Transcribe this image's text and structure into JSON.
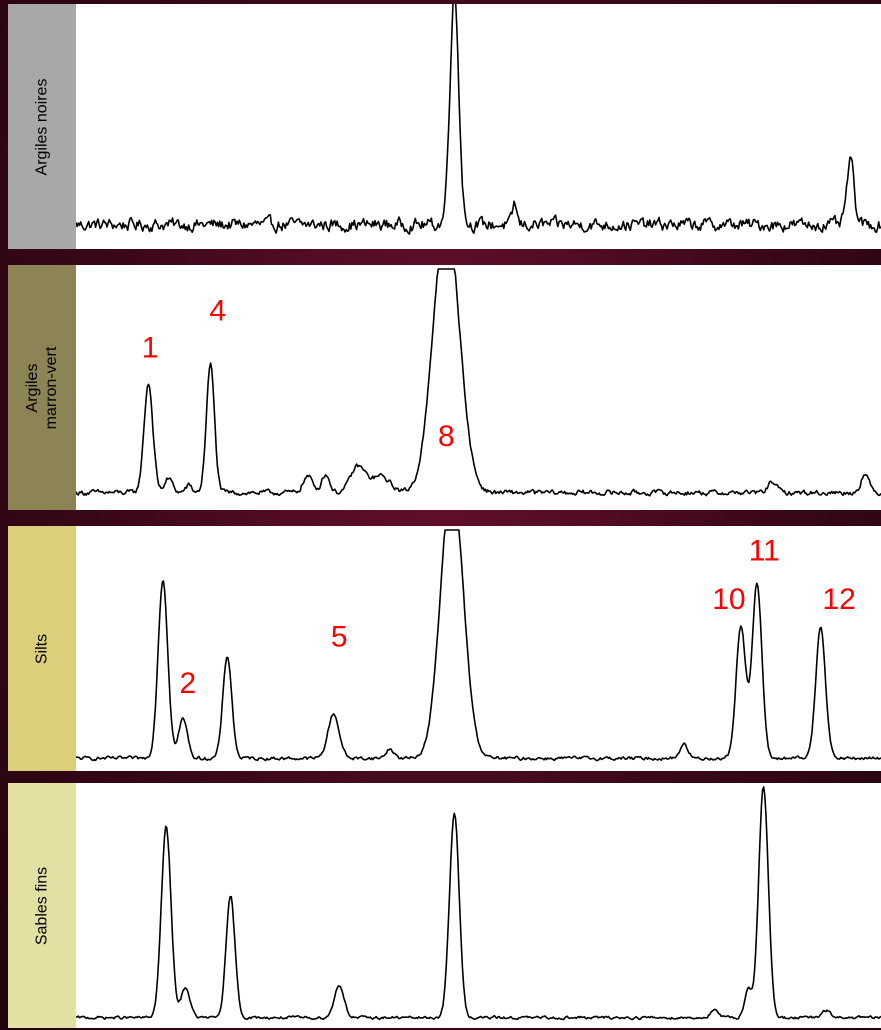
{
  "chart_data": {
    "type": "line",
    "x_unit": "relative position along diffractogram (0–100)",
    "panels": [
      {
        "label": "Argiles noires",
        "label_lines": [
          "Argiles noires"
        ],
        "label_bg": "#a8a8a8",
        "noise": 2.2,
        "baseline": 7,
        "peaks": [
          {
            "x": 47.0,
            "h": 100,
            "w": 0.55
          },
          {
            "x": 54.5,
            "h": 9,
            "w": 0.25
          },
          {
            "x": 96.2,
            "h": 27,
            "w": 0.45
          }
        ],
        "annotations": []
      },
      {
        "label": "Argiles marron-vert",
        "label_lines": [
          "Argiles",
          "marron-vert"
        ],
        "label_bg": "#8c8455",
        "noise": 0.9,
        "baseline": 4,
        "peaks": [
          {
            "x": 9.0,
            "h": 47,
            "w": 0.55
          },
          {
            "x": 11.5,
            "h": 6,
            "w": 0.5
          },
          {
            "x": 14.0,
            "h": 3,
            "w": 0.4
          },
          {
            "x": 16.7,
            "h": 55,
            "w": 0.5
          },
          {
            "x": 28.8,
            "h": 7,
            "w": 0.6
          },
          {
            "x": 31.0,
            "h": 8,
            "w": 0.5
          },
          {
            "x": 35.0,
            "h": 11,
            "w": 0.9
          },
          {
            "x": 37.8,
            "h": 7,
            "w": 1.2
          },
          {
            "x": 46.0,
            "h": 120,
            "w": 1.6
          },
          {
            "x": 86.5,
            "h": 5,
            "w": 0.5
          },
          {
            "x": 98.0,
            "h": 8,
            "w": 0.5
          }
        ],
        "clip_top": 100,
        "annotations": [
          {
            "text": "1",
            "x": 9.2,
            "y": 62
          },
          {
            "text": "4",
            "x": 17.6,
            "y": 78
          },
          {
            "text": "8",
            "x": 46.0,
            "y": 24
          }
        ]
      },
      {
        "label": "Silts",
        "label_lines": [
          "Silts"
        ],
        "label_bg": "#dccf7c",
        "noise": 0.6,
        "baseline": 2,
        "peaks": [
          {
            "x": 10.8,
            "h": 77,
            "w": 0.6
          },
          {
            "x": 13.3,
            "h": 17,
            "w": 0.55
          },
          {
            "x": 18.8,
            "h": 44,
            "w": 0.55
          },
          {
            "x": 32.0,
            "h": 19,
            "w": 0.7
          },
          {
            "x": 39.0,
            "h": 4,
            "w": 0.5
          },
          {
            "x": 46.7,
            "h": 120,
            "w": 1.4
          },
          {
            "x": 75.5,
            "h": 6,
            "w": 0.5
          },
          {
            "x": 82.6,
            "h": 57,
            "w": 0.6
          },
          {
            "x": 84.6,
            "h": 75,
            "w": 0.6
          },
          {
            "x": 92.5,
            "h": 57,
            "w": 0.6
          }
        ],
        "clip_top": 100,
        "annotations": [
          {
            "text": "2",
            "x": 13.9,
            "y": 30
          },
          {
            "text": "5",
            "x": 32.7,
            "y": 50
          },
          {
            "text": "10",
            "x": 81.1,
            "y": 66
          },
          {
            "text": "11",
            "x": 85.5,
            "y": 87
          },
          {
            "text": "12",
            "x": 94.8,
            "y": 66
          }
        ]
      },
      {
        "label": "Sables fins",
        "label_lines": [
          "Sables fins"
        ],
        "label_bg": "#e3e0a4",
        "noise": 0.5,
        "baseline": 1,
        "peaks": [
          {
            "x": 11.2,
            "h": 82,
            "w": 0.6
          },
          {
            "x": 13.6,
            "h": 13,
            "w": 0.55
          },
          {
            "x": 19.2,
            "h": 52,
            "w": 0.55
          },
          {
            "x": 32.7,
            "h": 14,
            "w": 0.6
          },
          {
            "x": 47.0,
            "h": 88,
            "w": 0.6
          },
          {
            "x": 79.3,
            "h": 3,
            "w": 0.5
          },
          {
            "x": 83.5,
            "h": 12,
            "w": 0.45
          },
          {
            "x": 85.4,
            "h": 99,
            "w": 0.6
          },
          {
            "x": 93.2,
            "h": 3,
            "w": 0.5
          }
        ],
        "annotations": []
      }
    ],
    "colors": {
      "line": "#000000",
      "annotation": "#ff0000"
    }
  }
}
